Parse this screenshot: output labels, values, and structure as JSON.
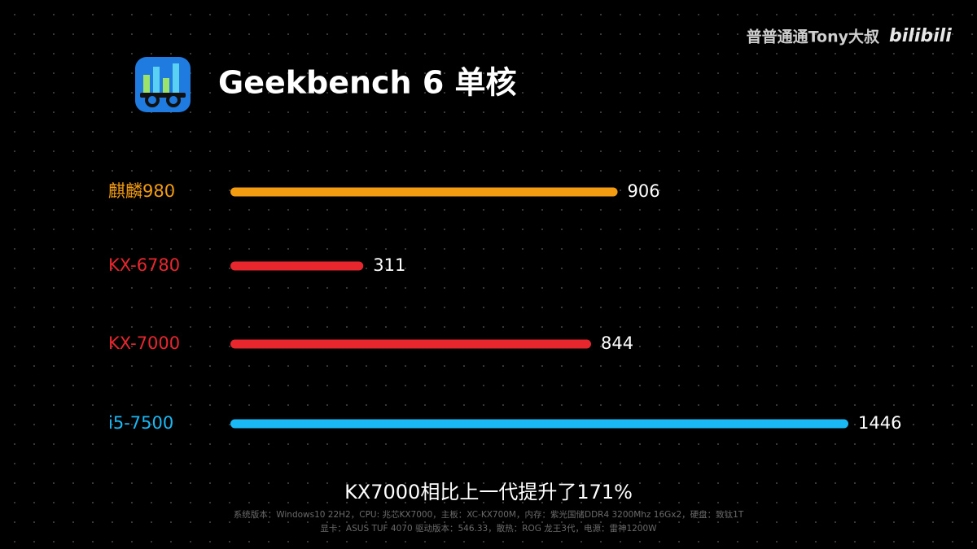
{
  "watermark": {
    "author": "普普通通Tony大叔",
    "brand": "bilibili"
  },
  "chart_data": {
    "type": "bar",
    "orientation": "horizontal",
    "title": "Geekbench 6 单核",
    "categories": [
      "麒麟980",
      "KX-6780",
      "KX-7000",
      "i5-7500"
    ],
    "values": [
      906,
      311,
      844,
      1446
    ],
    "colors": [
      "#f39c12",
      "#e8262e",
      "#e8262e",
      "#1ab9f6"
    ],
    "annotation": "KX7000相比上一代提升了171%",
    "notes": [
      "系统版本：Windows10 22H2，CPU: 兆芯KX7000，主板：XC-KX700M，内存：紫光国储DDR4 3200Mhz 16Gx2，硬盘：致钛1T",
      "显卡：ASUS TUF 4070 驱动版本：546.33，散热：ROG 龙王3代，电源：雷神1200W"
    ]
  }
}
